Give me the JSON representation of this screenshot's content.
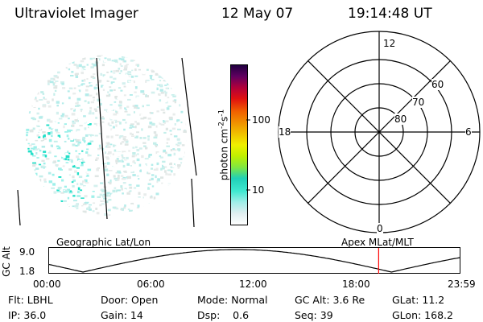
{
  "header": {
    "title": "Ultraviolet Imager",
    "date": "12 May 07",
    "time": "19:14:48 UT"
  },
  "colorbar": {
    "unit_label": "photon cm",
    "unit_sup1": "-2",
    "unit_mid": "s",
    "unit_sup2": "-1",
    "ticks": [
      {
        "label": "100",
        "value": 100
      },
      {
        "label": "10",
        "value": 10
      }
    ],
    "colors": [
      "#ffffff",
      "#e0eef0",
      "#a0eee8",
      "#40e8d0",
      "#20d0b8",
      "#80e840",
      "#c0f000",
      "#f0f000",
      "#f0c000",
      "#f09000",
      "#f06000",
      "#e01010",
      "#b0003a",
      "#600060",
      "#200040"
    ]
  },
  "polar": {
    "mlt_labels": {
      "top": "12",
      "right": "6",
      "bottom": "0",
      "left": "18"
    },
    "lat_labels": [
      "60",
      "70",
      "80"
    ]
  },
  "timeline": {
    "left_label": "Geographic Lat/Lon",
    "right_label": "Apex  MLat/MLT",
    "axis_title": "GC Alt",
    "y_ticks": [
      "9.0",
      "1.8"
    ],
    "x_ticks": [
      "00:00",
      "06:00",
      "12:00",
      "18:00",
      "23:59"
    ],
    "current_time_hours": 19.25,
    "marker_color": "#ff0000"
  },
  "info": {
    "flt": "Flt: LBHL",
    "door": "Door: Open",
    "mode": "Mode: Normal",
    "gc_alt": "GC Alt: 3.6 Re",
    "glat": "GLat:  11.2",
    "ip": "IP: 36.0",
    "gain": "Gain: 14",
    "dsp": "Dsp:    0.6",
    "seq": "Seq: 39",
    "glon": "GLon: 168.2"
  }
}
